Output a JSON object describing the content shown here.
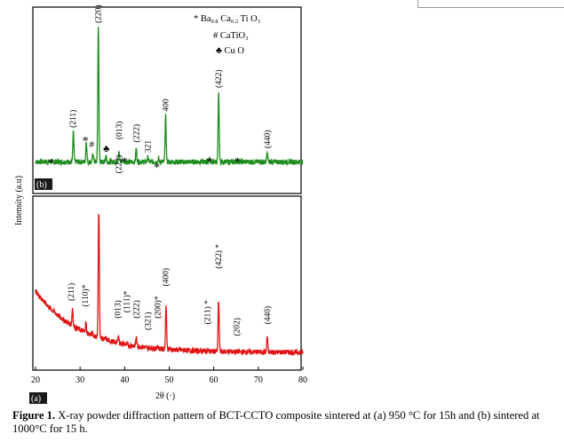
{
  "figure": {
    "caption_label": "Figure 1.",
    "caption_text": " X-ray powder diffraction pattern of BCT-CCTO composite sintered at (a) 950 °C for 15h and (b) sintered at 1000°C for 15 h.",
    "ylabel": "Intensity (a.u)",
    "xlabel": "2θ (·)",
    "legend": {
      "bct": "* Ba",
      "bct_sub1": "0.8",
      "bct_mid": " Ca",
      "bct_sub2": "0.2",
      "bct_end": " Ti O",
      "bct_sub3": "3",
      "cato": "# CaTiO",
      "cato_sub": "3",
      "cuo": "♣ Cu O"
    }
  },
  "chart_data": [
    {
      "panel": "b",
      "panel_label": "(b)",
      "type": "line",
      "color": "#1e8c1e",
      "xlim": [
        20,
        80
      ],
      "baseline": 0.07,
      "peaks": [
        {
          "x": 28.5,
          "y": 0.27
        },
        {
          "x": 31.4,
          "y": 0.21
        },
        {
          "x": 32.9,
          "y": 0.13
        },
        {
          "x": 34.1,
          "y": 1.0
        },
        {
          "x": 35.8,
          "y": 0.12
        },
        {
          "x": 38.7,
          "y": 0.15
        },
        {
          "x": 39.6,
          "y": 0.08
        },
        {
          "x": 42.6,
          "y": 0.16
        },
        {
          "x": 45.2,
          "y": 0.1
        },
        {
          "x": 47.6,
          "y": 0.09
        },
        {
          "x": 49.2,
          "y": 0.38
        },
        {
          "x": 59.0,
          "y": 0.09
        },
        {
          "x": 61.1,
          "y": 0.53
        },
        {
          "x": 65.3,
          "y": 0.08
        },
        {
          "x": 72.0,
          "y": 0.13
        }
      ],
      "annotations": [
        {
          "text": "(211)",
          "x": 28.4,
          "y": 0.29,
          "rot": true
        },
        {
          "text": "(220)",
          "x": 34.1,
          "y": 1.0,
          "rot": true
        },
        {
          "text": "(013)",
          "x": 38.7,
          "y": 0.21,
          "rot": true
        },
        {
          "text": "(222)",
          "x": 42.6,
          "y": 0.19,
          "rot": true
        },
        {
          "text": "321",
          "x": 45.2,
          "y": 0.12,
          "rot": true
        },
        {
          "text": "400",
          "x": 49.2,
          "y": 0.4,
          "rot": true
        },
        {
          "text": "(422)",
          "x": 61.1,
          "y": 0.56,
          "rot": true
        },
        {
          "text": "(440)",
          "x": 72.0,
          "y": 0.15,
          "rot": true
        },
        {
          "text": "(222)",
          "x": 38.6,
          "y": -0.02,
          "rot": true
        },
        {
          "text": "*",
          "x": 23.5,
          "y": 0.09,
          "rot": false
        },
        {
          "text": "*",
          "x": 31.2,
          "y": 0.24,
          "rot": false
        },
        {
          "text": "#",
          "x": 32.6,
          "y": 0.17,
          "rot": false
        },
        {
          "text": "♣",
          "x": 35.9,
          "y": 0.14,
          "rot": false
        },
        {
          "text": "*",
          "x": 40.0,
          "y": 0.1,
          "rot": false
        },
        {
          "text": "*",
          "x": 47.2,
          "y": 0.06,
          "rot": false
        },
        {
          "text": "*",
          "x": 59.0,
          "y": 0.1,
          "rot": false
        },
        {
          "text": "*",
          "x": 65.3,
          "y": 0.1,
          "rot": false
        }
      ]
    },
    {
      "panel": "a",
      "panel_label": "(a)",
      "type": "line",
      "color": "#e01414",
      "xlim": [
        20,
        80
      ],
      "xticks": [
        20,
        30,
        40,
        50,
        60,
        70,
        80
      ],
      "baseline_start": 0.48,
      "baseline_end": 0.06,
      "peaks": [
        {
          "x": 28.3,
          "y": 0.18
        },
        {
          "x": 31.3,
          "y": 0.13
        },
        {
          "x": 32.8,
          "y": 0.08
        },
        {
          "x": 34.2,
          "y": 1.0
        },
        {
          "x": 35.8,
          "y": 0.07
        },
        {
          "x": 38.6,
          "y": 0.11
        },
        {
          "x": 41.0,
          "y": 0.05
        },
        {
          "x": 42.6,
          "y": 0.12
        },
        {
          "x": 45.2,
          "y": 0.05
        },
        {
          "x": 47.4,
          "y": 0.08
        },
        {
          "x": 49.3,
          "y": 0.37
        },
        {
          "x": 58.7,
          "y": 0.07
        },
        {
          "x": 61.1,
          "y": 0.41
        },
        {
          "x": 65.2,
          "y": 0.06
        },
        {
          "x": 72.0,
          "y": 0.17
        }
      ],
      "annotations": [
        {
          "text": "(211)",
          "x": 28.0,
          "y": 0.4,
          "rot": true
        },
        {
          "text": "(110)*",
          "x": 31.2,
          "y": 0.36,
          "rot": true
        },
        {
          "text": "(013)",
          "x": 38.4,
          "y": 0.28,
          "rot": true
        },
        {
          "text": "(111)*",
          "x": 40.4,
          "y": 0.32,
          "rot": true
        },
        {
          "text": "(222)",
          "x": 42.6,
          "y": 0.28,
          "rot": true
        },
        {
          "text": "(321)",
          "x": 45.2,
          "y": 0.2,
          "rot": true
        },
        {
          "text": "(200)*",
          "x": 47.4,
          "y": 0.28,
          "rot": true
        },
        {
          "text": "(400)",
          "x": 49.2,
          "y": 0.5,
          "rot": true
        },
        {
          "text": "(211) *",
          "x": 58.6,
          "y": 0.24,
          "rot": true
        },
        {
          "text": "(422) *",
          "x": 61.1,
          "y": 0.62,
          "rot": true
        },
        {
          "text": "(202)",
          "x": 65.2,
          "y": 0.16,
          "rot": true
        },
        {
          "text": "(440)",
          "x": 72.0,
          "y": 0.24,
          "rot": true
        }
      ]
    }
  ]
}
